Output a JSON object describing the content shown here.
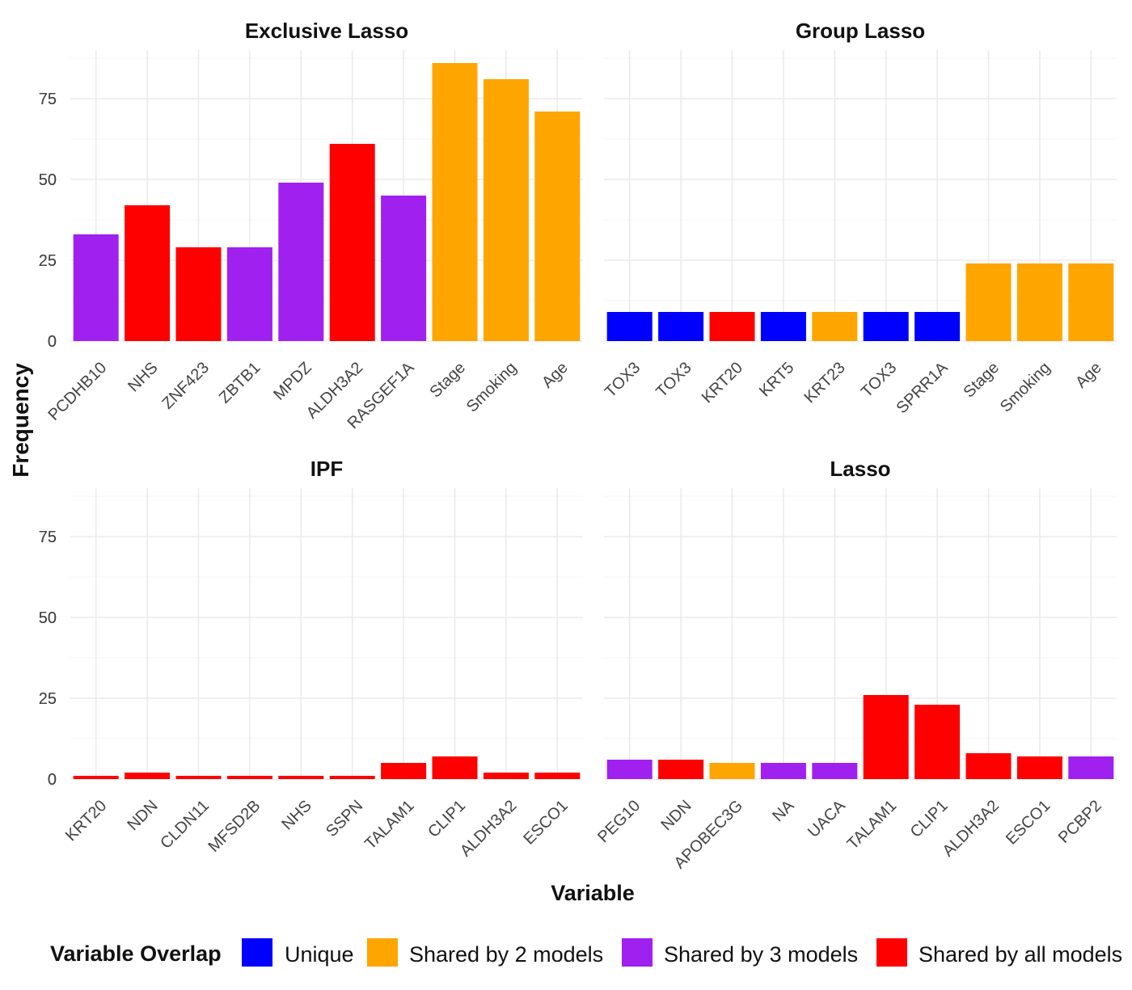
{
  "chart_data": {
    "type": "bar",
    "xlabel": "Variable",
    "ylabel": "Frequency",
    "ylim": [
      0,
      88
    ],
    "yticks": [
      0,
      25,
      50,
      75
    ],
    "colors": {
      "Unique": "#0000ff",
      "Shared by 2 models": "#ffa500",
      "Shared by 3 models": "#a020f0",
      "Shared by all models": "#ff0000"
    },
    "legend": {
      "title": "Variable Overlap",
      "placement": "bottom",
      "items": [
        "Unique",
        "Shared by 2 models",
        "Shared by 3 models",
        "Shared by all models"
      ]
    },
    "panels": [
      {
        "title": "Exclusive Lasso",
        "categories": [
          "PCDHB10",
          "NHS",
          "ZNF423",
          "ZBTB1",
          "MPDZ",
          "ALDH3A2",
          "RASGEF1A",
          "Stage",
          "Smoking",
          "Age"
        ],
        "values": [
          33,
          42,
          29,
          29,
          49,
          61,
          45,
          86,
          81,
          71
        ],
        "groups": [
          "Shared by 3 models",
          "Shared by all models",
          "Shared by all models",
          "Shared by 3 models",
          "Shared by 3 models",
          "Shared by all models",
          "Shared by 3 models",
          "Shared by 2 models",
          "Shared by 2 models",
          "Shared by 2 models"
        ]
      },
      {
        "title": "Group Lasso",
        "categories": [
          "TOX3",
          "TOX3",
          "KRT20",
          "KRT5",
          "KRT23",
          "TOX3",
          "SPRR1A",
          "Stage",
          "Smoking",
          "Age"
        ],
        "values": [
          9,
          9,
          9,
          9,
          9,
          9,
          9,
          24,
          24,
          24
        ],
        "groups": [
          "Unique",
          "Unique",
          "Shared by all models",
          "Unique",
          "Shared by 2 models",
          "Unique",
          "Unique",
          "Shared by 2 models",
          "Shared by 2 models",
          "Shared by 2 models"
        ]
      },
      {
        "title": "IPF",
        "categories": [
          "KRT20",
          "NDN",
          "CLDN11",
          "MFSD2B",
          "NHS",
          "SSPN",
          "TALAM1",
          "CLIP1",
          "ALDH3A2",
          "ESCO1"
        ],
        "values": [
          1,
          2,
          1,
          1,
          1,
          1,
          5,
          7,
          2,
          2
        ],
        "groups": [
          "Shared by all models",
          "Shared by all models",
          "Shared by all models",
          "Shared by all models",
          "Shared by all models",
          "Shared by all models",
          "Shared by all models",
          "Shared by all models",
          "Shared by all models",
          "Shared by all models"
        ]
      },
      {
        "title": "Lasso",
        "categories": [
          "PEG10",
          "NDN",
          "APOBEC3G",
          "NA",
          "UACA",
          "TALAM1",
          "CLIP1",
          "ALDH3A2",
          "ESCO1",
          "PCBP2"
        ],
        "values": [
          6,
          6,
          5,
          5,
          5,
          26,
          23,
          8,
          7,
          7
        ],
        "groups": [
          "Shared by 3 models",
          "Shared by all models",
          "Shared by 2 models",
          "Shared by 3 models",
          "Shared by 3 models",
          "Shared by all models",
          "Shared by all models",
          "Shared by all models",
          "Shared by all models",
          "Shared by 3 models"
        ]
      }
    ]
  }
}
